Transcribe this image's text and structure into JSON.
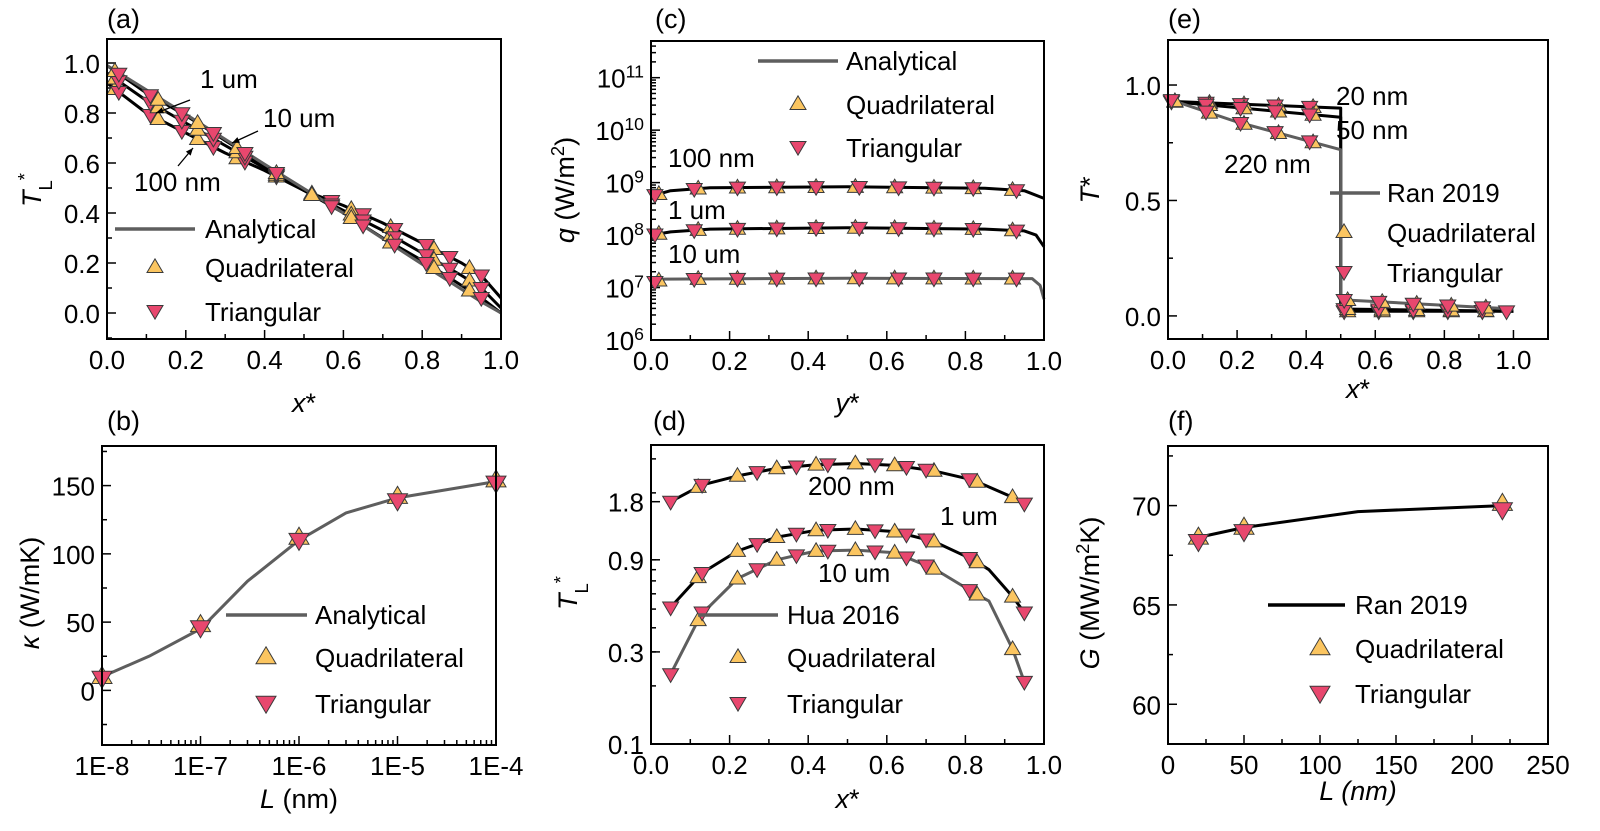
{
  "colors": {
    "quadrilateral": "#fbc560",
    "triangular": "#e8476e",
    "marker_edge": "#3a3a3a",
    "black_line": "#000000",
    "gray_line": "#5e5e5e"
  },
  "chart_data": [
    {
      "id": "a",
      "panel_label": "(a)",
      "type": "line",
      "xlabel": "~x~*",
      "ylabel": "~T~_{L}^{*}",
      "xscale": "linear",
      "yscale": "linear",
      "xlim": [
        0,
        1.0
      ],
      "ylim": [
        -0.104,
        1.096
      ],
      "xticks": [
        0,
        0.2,
        0.4,
        0.6,
        0.8,
        1.0
      ],
      "xtick_labels": [
        "0.0",
        "0.2",
        "0.4",
        "0.6",
        "0.8",
        "1.0"
      ],
      "yticks": [
        0,
        0.2,
        0.4,
        0.6,
        0.8,
        1.0
      ],
      "ytick_labels": [
        "0.0",
        "0.2",
        "0.4",
        "0.6",
        "0.8",
        "1.0"
      ],
      "legend": {
        "line": "Analytical",
        "quad": "Quadrilateral",
        "tri": "Triangular",
        "line_style": "gray"
      },
      "annotations": [
        "1 um",
        "10 um",
        "100 nm"
      ],
      "series": [
        {
          "name": "100 nm",
          "style": "black",
          "x": [
            0,
            0.1,
            0.2,
            0.3,
            0.4,
            0.5,
            0.6,
            0.7,
            0.8,
            0.9,
            0.95,
            1.0
          ],
          "y": [
            0.92,
            0.8,
            0.72,
            0.64,
            0.57,
            0.49,
            0.43,
            0.36,
            0.28,
            0.2,
            0.15,
            0.06
          ],
          "quad_x": [
            0.02,
            0.13,
            0.23,
            0.33,
            0.43,
            0.52,
            0.62,
            0.72,
            0.83,
            0.92
          ],
          "tri_x": [
            0.03,
            0.11,
            0.19,
            0.27,
            0.35,
            0.43,
            0.57,
            0.65,
            0.73,
            0.81,
            0.87,
            0.95
          ]
        },
        {
          "name": "1 um",
          "style": "black",
          "x": [
            0,
            0.1,
            0.2,
            0.3,
            0.4,
            0.5,
            0.6,
            0.7,
            0.8,
            0.9,
            0.95,
            1.0
          ],
          "y": [
            0.96,
            0.85,
            0.76,
            0.67,
            0.58,
            0.49,
            0.41,
            0.33,
            0.24,
            0.15,
            0.1,
            0.02
          ],
          "quad_x": [
            0.02,
            0.13,
            0.23,
            0.33,
            0.43,
            0.52,
            0.62,
            0.72,
            0.83,
            0.92
          ],
          "tri_x": [
            0.03,
            0.11,
            0.19,
            0.27,
            0.35,
            0.43,
            0.57,
            0.65,
            0.73,
            0.81,
            0.87,
            0.95
          ]
        },
        {
          "name": "10 um",
          "style": "black",
          "x": [
            0,
            0.1,
            0.2,
            0.3,
            0.4,
            0.5,
            0.6,
            0.7,
            0.8,
            0.9,
            0.95,
            1.0
          ],
          "y": [
            0.99,
            0.88,
            0.79,
            0.69,
            0.59,
            0.49,
            0.4,
            0.3,
            0.21,
            0.11,
            0.06,
            0.0
          ],
          "quad_x": [
            0.02,
            0.13,
            0.23,
            0.33,
            0.43,
            0.52,
            0.62,
            0.72,
            0.83,
            0.92
          ],
          "tri_x": [
            0.03,
            0.11,
            0.19,
            0.27,
            0.35,
            0.43,
            0.57,
            0.65,
            0.73,
            0.81,
            0.87,
            0.95
          ]
        },
        {
          "name": "Analytical",
          "style": "gray",
          "x": [
            0,
            0.2,
            0.4,
            0.6,
            0.8,
            0.95,
            1.0
          ],
          "y": [
            0.99,
            0.795,
            0.595,
            0.4,
            0.195,
            0.045,
            0.0
          ]
        }
      ]
    },
    {
      "id": "c",
      "panel_label": "(c)",
      "type": "line",
      "xlabel": "~y~*",
      "ylabel": "~q~ (W/m^{2})",
      "xscale": "linear",
      "yscale": "log",
      "xlim": [
        0,
        1.0
      ],
      "ylim": [
        1000000.0,
        500000000000.0
      ],
      "xticks": [
        0,
        0.2,
        0.4,
        0.6,
        0.8,
        1.0
      ],
      "xtick_labels": [
        "0.0",
        "0.2",
        "0.4",
        "0.6",
        "0.8",
        "1.0"
      ],
      "yticks": [
        1000000.0,
        10000000.0,
        100000000.0,
        1000000000.0,
        10000000000.0,
        100000000000.0
      ],
      "ytick_labels": [
        "10^{6}",
        "10^{7}",
        "10^{8}",
        "10^{9}",
        "10^{10}",
        "10^{11}"
      ],
      "legend": {
        "line": "Analytical",
        "quad": "Quadrilateral",
        "tri": "Triangular",
        "line_style": "gray"
      },
      "annotations": [
        "100 nm",
        "1 um",
        "10 um"
      ],
      "series": [
        {
          "name": "100 nm",
          "style": "black",
          "x": [
            0,
            0.05,
            0.15,
            0.5,
            0.85,
            0.95,
            1.0
          ],
          "y": [
            550000000.0,
            700000000.0,
            800000000.0,
            830000000.0,
            780000000.0,
            700000000.0,
            500000000.0
          ],
          "quad_x": [
            0.02,
            0.12,
            0.22,
            0.32,
            0.42,
            0.52,
            0.62,
            0.72,
            0.82,
            0.92
          ],
          "tri_x": [
            0.01,
            0.11,
            0.22,
            0.32,
            0.42,
            0.53,
            0.63,
            0.72,
            0.82,
            0.93
          ]
        },
        {
          "name": "1 um",
          "style": "black",
          "x": [
            0,
            0.05,
            0.15,
            0.5,
            0.85,
            0.95,
            0.98,
            1.0
          ],
          "y": [
            100000000.0,
            115000000.0,
            130000000.0,
            138000000.0,
            130000000.0,
            120000000.0,
            100000000.0,
            60000000.0
          ],
          "quad_x": [
            0.02,
            0.12,
            0.22,
            0.32,
            0.42,
            0.52,
            0.62,
            0.72,
            0.82,
            0.92
          ],
          "tri_x": [
            0.01,
            0.11,
            0.22,
            0.32,
            0.42,
            0.53,
            0.63,
            0.72,
            0.82,
            0.93
          ]
        },
        {
          "name": "10 um",
          "style": "gray",
          "x": [
            0,
            0.03,
            0.5,
            0.97,
            0.99,
            1.0
          ],
          "y": [
            12000000.0,
            14500000.0,
            15000000.0,
            14800000.0,
            11000000.0,
            6000000.0
          ],
          "quad_x": [
            0.02,
            0.12,
            0.22,
            0.32,
            0.42,
            0.52,
            0.62,
            0.72,
            0.82,
            0.92
          ],
          "tri_x": [
            0.01,
            0.11,
            0.22,
            0.32,
            0.42,
            0.53,
            0.63,
            0.72,
            0.82,
            0.93
          ]
        }
      ]
    },
    {
      "id": "e",
      "panel_label": "(e)",
      "type": "line",
      "xlabel": "~x~*",
      "ylabel": "~T~*",
      "xscale": "linear",
      "yscale": "linear",
      "xlim": [
        0,
        1.1
      ],
      "ylim": [
        -0.1,
        1.195
      ],
      "xticks": [
        0,
        0.2,
        0.4,
        0.6,
        0.8,
        1.0
      ],
      "xtick_labels": [
        "0.0",
        "0.2",
        "0.4",
        "0.6",
        "0.8",
        "1.0"
      ],
      "yticks": [
        0,
        0.5,
        1.0
      ],
      "ytick_labels": [
        "0.0",
        "0.5",
        "1.0"
      ],
      "legend": {
        "line": "Ran 2019",
        "quad": "Quadrilateral",
        "tri": "Triangular",
        "line_style": "gray"
      },
      "annotations": [
        "20 nm",
        "50 nm",
        "220 nm"
      ],
      "series": [
        {
          "name": "20 nm",
          "style": "black",
          "x": [
            0,
            0.5,
            0.5,
            1.0
          ],
          "y": [
            0.93,
            0.9,
            0.02,
            0.02
          ],
          "quad_x": [
            0.02,
            0.12,
            0.22,
            0.32,
            0.42,
            0.52,
            0.62,
            0.72,
            0.82,
            0.92
          ],
          "tri_x": [
            0.01,
            0.11,
            0.21,
            0.31,
            0.41,
            0.51,
            0.61,
            0.71,
            0.81,
            0.91,
            0.98
          ]
        },
        {
          "name": "50 nm",
          "style": "black",
          "x": [
            0,
            0.5,
            0.5,
            1.0
          ],
          "y": [
            0.93,
            0.86,
            0.03,
            0.02
          ],
          "quad_x": [
            0.02,
            0.12,
            0.22,
            0.32,
            0.42,
            0.52,
            0.62,
            0.72,
            0.82,
            0.92
          ],
          "tri_x": [
            0.01,
            0.11,
            0.21,
            0.31,
            0.41,
            0.51,
            0.61,
            0.71,
            0.81,
            0.91
          ]
        },
        {
          "name": "220 nm",
          "style": "gray",
          "x": [
            0,
            0.1,
            0.2,
            0.3,
            0.4,
            0.5,
            0.5,
            1.0
          ],
          "y": [
            0.94,
            0.89,
            0.84,
            0.8,
            0.76,
            0.72,
            0.07,
            0.03
          ],
          "quad_x": [
            0.02,
            0.12,
            0.22,
            0.32,
            0.42,
            0.52,
            0.62,
            0.72,
            0.82,
            0.92
          ],
          "tri_x": [
            0.01,
            0.11,
            0.21,
            0.31,
            0.41,
            0.51,
            0.61,
            0.71,
            0.81,
            0.91
          ]
        }
      ]
    },
    {
      "id": "b",
      "panel_label": "(b)",
      "type": "line",
      "xlabel": "~L~ (nm)",
      "ylabel": "~κ~ (W/mK)",
      "xscale": "log",
      "yscale": "linear",
      "xlim": [
        1e-08,
        0.0001
      ],
      "ylim": [
        -40,
        179
      ],
      "xticks": [
        1e-08,
        1e-07,
        1e-06,
        1e-05,
        0.0001
      ],
      "xtick_labels": [
        "1E-8",
        "1E-7",
        "1E-6",
        "1E-5",
        "1E-4"
      ],
      "yticks": [
        0,
        50,
        100,
        150
      ],
      "ytick_labels": [
        "0",
        "50",
        "100",
        "150"
      ],
      "legend": {
        "line": "Analytical",
        "quad": "Quadrilateral",
        "tri": "Triangular",
        "line_style": "gray"
      },
      "annotations": [],
      "series": [
        {
          "name": "Analytical",
          "style": "gray",
          "x": [
            1e-08,
            3e-08,
            1e-07,
            3e-07,
            1e-06,
            3e-06,
            1e-05,
            0.0001
          ],
          "y": [
            10,
            25,
            45,
            80,
            110,
            130,
            141,
            153
          ],
          "quad_x": [
            1e-08,
            1e-07,
            1e-06,
            1e-05,
            0.0001
          ],
          "quad_y": [
            10,
            48,
            112,
            142,
            154
          ],
          "tri_x": [
            1e-08,
            1e-07,
            1e-06,
            1e-05,
            0.0001
          ],
          "tri_y": [
            9,
            46,
            110,
            139,
            152
          ]
        }
      ]
    },
    {
      "id": "d",
      "panel_label": "(d)",
      "type": "line",
      "xlabel": "~x~*",
      "ylabel": "~T~_{L}^{*}",
      "xscale": "linear",
      "yscale": "log",
      "xlim": [
        0,
        1.0
      ],
      "ylim": [
        0.1,
        3.54
      ],
      "xticks": [
        0,
        0.2,
        0.4,
        0.6,
        0.8,
        1.0
      ],
      "xtick_labels": [
        "0.0",
        "0.2",
        "0.4",
        "0.6",
        "0.8",
        "1.0"
      ],
      "yticks": [
        0.1,
        0.3,
        0.9,
        1.8
      ],
      "ytick_labels": [
        "0.1",
        "0.3",
        "0.9",
        "1.8"
      ],
      "legend": {
        "line": "Hua 2016",
        "quad": "Quadrilateral",
        "tri": "Triangular",
        "line_style": "gray"
      },
      "annotations": [
        "200 nm",
        "1 um",
        "10 um"
      ],
      "series": [
        {
          "name": "200 nm",
          "style": "black",
          "x": [
            0.05,
            0.13,
            0.22,
            0.32,
            0.42,
            0.52,
            0.62,
            0.72,
            0.82,
            0.92,
            0.95
          ],
          "y": [
            1.8,
            2.2,
            2.45,
            2.68,
            2.8,
            2.84,
            2.78,
            2.6,
            2.33,
            1.9,
            1.76
          ],
          "quad_x": [
            0.12,
            0.22,
            0.32,
            0.42,
            0.52,
            0.62,
            0.72,
            0.83,
            0.92
          ],
          "tri_x": [
            0.05,
            0.13,
            0.27,
            0.37,
            0.45,
            0.57,
            0.65,
            0.7,
            0.81,
            0.95
          ]
        },
        {
          "name": "1 um",
          "style": "black",
          "x": [
            0.05,
            0.13,
            0.22,
            0.32,
            0.42,
            0.52,
            0.62,
            0.72,
            0.82,
            0.86,
            0.92,
            0.95
          ],
          "y": [
            0.51,
            0.77,
            1.0,
            1.18,
            1.28,
            1.3,
            1.26,
            1.12,
            0.9,
            0.8,
            0.58,
            0.48
          ],
          "quad_x": [
            0.12,
            0.22,
            0.32,
            0.42,
            0.52,
            0.62,
            0.72,
            0.83,
            0.92
          ],
          "tri_x": [
            0.05,
            0.13,
            0.27,
            0.37,
            0.45,
            0.57,
            0.65,
            0.7,
            0.81,
            0.95
          ]
        },
        {
          "name": "10 um",
          "style": "gray",
          "x": [
            0.05,
            0.13,
            0.15,
            0.22,
            0.32,
            0.37,
            0.42,
            0.52,
            0.62,
            0.72,
            0.82,
            0.86,
            0.92,
            0.95
          ],
          "y": [
            0.23,
            0.48,
            0.52,
            0.72,
            0.9,
            0.95,
            1.0,
            1.01,
            0.98,
            0.81,
            0.61,
            0.55,
            0.31,
            0.21
          ],
          "quad_x": [
            0.12,
            0.22,
            0.32,
            0.42,
            0.52,
            0.62,
            0.72,
            0.83,
            0.92
          ],
          "tri_x": [
            0.05,
            0.13,
            0.27,
            0.37,
            0.45,
            0.57,
            0.65,
            0.7,
            0.81,
            0.95
          ]
        }
      ]
    },
    {
      "id": "f",
      "panel_label": "(f)",
      "type": "line",
      "xlabel": "~L (nm)~",
      "ylabel": "~G~ (MW/m^{2}K)",
      "xscale": "linear",
      "yscale": "linear",
      "xlim": [
        0,
        250
      ],
      "ylim": [
        58,
        73
      ],
      "xticks": [
        0,
        50,
        100,
        150,
        200,
        250
      ],
      "xtick_labels": [
        "0",
        "50",
        "100",
        "150",
        "200",
        "250"
      ],
      "yticks": [
        60,
        65,
        70
      ],
      "ytick_labels": [
        "60",
        "65",
        "70"
      ],
      "legend": {
        "line": "Ran 2019",
        "quad": "Quadrilateral",
        "tri": "Triangular",
        "line_style": "black"
      },
      "annotations": [],
      "series": [
        {
          "name": "Ran 2019",
          "style": "black",
          "x": [
            20,
            50,
            125,
            220
          ],
          "y": [
            68.4,
            68.9,
            69.7,
            70.0
          ],
          "quad_x": [
            20,
            50,
            220
          ],
          "quad_y": [
            68.4,
            68.9,
            70.1
          ],
          "tri_x": [
            20,
            50,
            220
          ],
          "tri_y": [
            68.2,
            68.7,
            69.8
          ]
        }
      ]
    }
  ]
}
